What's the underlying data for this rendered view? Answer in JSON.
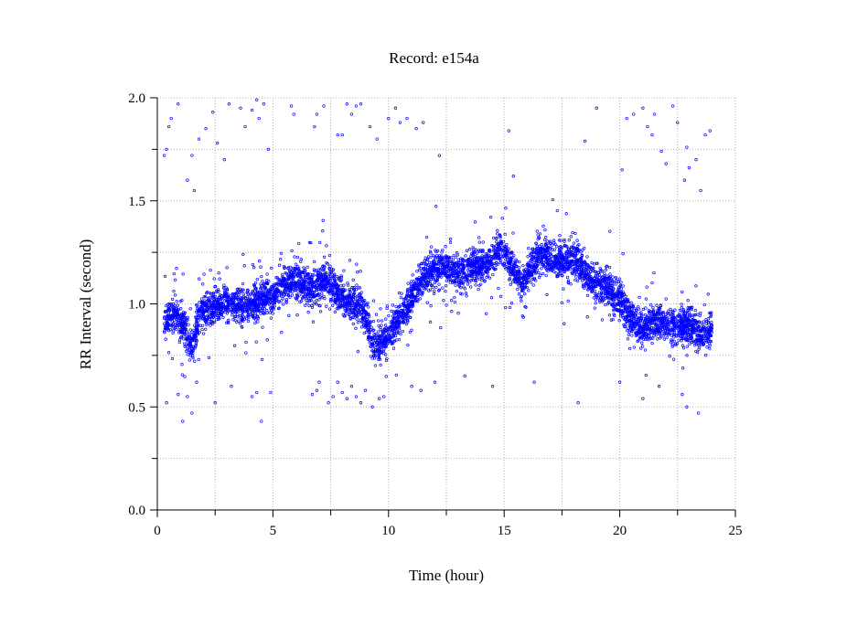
{
  "chart_data": {
    "type": "scatter",
    "title": "Record:  e154a",
    "xlabel": "Time (hour)",
    "ylabel": "RR Interval (second)",
    "xlim": [
      0,
      25
    ],
    "ylim": [
      0,
      2
    ],
    "x_ticks": [
      0,
      5,
      10,
      15,
      20,
      25
    ],
    "y_ticks": [
      0.0,
      0.5,
      1.0,
      1.5,
      2.0
    ],
    "x_tick_labels": [
      "0",
      "5",
      "10",
      "15",
      "20",
      "25"
    ],
    "y_tick_labels": [
      "0.0",
      "0.5",
      "1.0",
      "1.5",
      "2.0"
    ],
    "grid": true,
    "marker": "open-circle",
    "series_color": "#0000ff",
    "trend": [
      [
        0.3,
        0.92
      ],
      [
        0.8,
        0.95
      ],
      [
        1.2,
        0.88
      ],
      [
        1.5,
        0.78
      ],
      [
        1.8,
        0.95
      ],
      [
        2.3,
        0.98
      ],
      [
        3.0,
        1.0
      ],
      [
        3.8,
        0.98
      ],
      [
        4.5,
        1.02
      ],
      [
        5.2,
        1.05
      ],
      [
        5.8,
        1.12
      ],
      [
        6.3,
        1.1
      ],
      [
        6.8,
        1.08
      ],
      [
        7.3,
        1.12
      ],
      [
        7.8,
        1.05
      ],
      [
        8.3,
        1.0
      ],
      [
        8.8,
        1.0
      ],
      [
        9.1,
        0.9
      ],
      [
        9.4,
        0.78
      ],
      [
        9.8,
        0.82
      ],
      [
        10.3,
        0.9
      ],
      [
        10.8,
        0.98
      ],
      [
        11.3,
        1.1
      ],
      [
        11.8,
        1.15
      ],
      [
        12.2,
        1.18
      ],
      [
        12.6,
        1.18
      ],
      [
        13.2,
        1.15
      ],
      [
        13.8,
        1.18
      ],
      [
        14.4,
        1.2
      ],
      [
        14.8,
        1.28
      ],
      [
        15.3,
        1.18
      ],
      [
        15.8,
        1.1
      ],
      [
        16.2,
        1.18
      ],
      [
        16.6,
        1.25
      ],
      [
        17.0,
        1.22
      ],
      [
        17.5,
        1.2
      ],
      [
        18.0,
        1.22
      ],
      [
        18.5,
        1.15
      ],
      [
        19.0,
        1.1
      ],
      [
        19.5,
        1.08
      ],
      [
        20.0,
        1.02
      ],
      [
        20.5,
        0.92
      ],
      [
        21.0,
        0.88
      ],
      [
        21.5,
        0.92
      ],
      [
        22.0,
        0.9
      ],
      [
        22.5,
        0.88
      ],
      [
        23.0,
        0.9
      ],
      [
        23.5,
        0.85
      ],
      [
        24.0,
        0.88
      ]
    ],
    "n_points": 5500,
    "spread": 0.07,
    "outlier_points": [
      [
        0.3,
        1.72
      ],
      [
        0.4,
        1.75
      ],
      [
        0.5,
        1.86
      ],
      [
        0.6,
        1.9
      ],
      [
        0.9,
        1.97
      ],
      [
        1.3,
        1.6
      ],
      [
        1.5,
        1.72
      ],
      [
        1.6,
        1.55
      ],
      [
        1.8,
        1.8
      ],
      [
        2.1,
        1.85
      ],
      [
        2.4,
        1.93
      ],
      [
        2.6,
        1.78
      ],
      [
        2.9,
        1.7
      ],
      [
        3.1,
        1.97
      ],
      [
        3.6,
        1.95
      ],
      [
        3.8,
        1.86
      ],
      [
        4.1,
        1.94
      ],
      [
        4.3,
        1.99
      ],
      [
        4.4,
        1.9
      ],
      [
        4.6,
        1.97
      ],
      [
        4.8,
        1.75
      ],
      [
        5.8,
        1.96
      ],
      [
        5.9,
        1.92
      ],
      [
        6.8,
        1.86
      ],
      [
        6.9,
        1.92
      ],
      [
        7.2,
        1.96
      ],
      [
        7.8,
        1.82
      ],
      [
        8.0,
        1.82
      ],
      [
        8.2,
        1.97
      ],
      [
        8.4,
        1.92
      ],
      [
        8.6,
        1.96
      ],
      [
        8.8,
        1.97
      ],
      [
        9.2,
        1.86
      ],
      [
        9.5,
        1.8
      ],
      [
        10.0,
        1.9
      ],
      [
        10.3,
        1.95
      ],
      [
        10.5,
        1.88
      ],
      [
        10.8,
        1.9
      ],
      [
        11.2,
        1.85
      ],
      [
        11.5,
        1.88
      ],
      [
        12.2,
        1.72
      ],
      [
        15.2,
        1.84
      ],
      [
        15.4,
        1.62
      ],
      [
        18.5,
        1.79
      ],
      [
        19.0,
        1.95
      ],
      [
        20.1,
        1.65
      ],
      [
        20.3,
        1.9
      ],
      [
        20.6,
        1.92
      ],
      [
        21.0,
        1.95
      ],
      [
        21.2,
        1.86
      ],
      [
        21.5,
        1.92
      ],
      [
        21.8,
        1.74
      ],
      [
        22.0,
        1.68
      ],
      [
        22.3,
        1.96
      ],
      [
        22.5,
        1.88
      ],
      [
        22.8,
        1.6
      ],
      [
        23.0,
        1.66
      ],
      [
        23.3,
        1.7
      ],
      [
        23.5,
        1.55
      ],
      [
        23.7,
        1.82
      ],
      [
        23.9,
        1.84
      ],
      [
        21.4,
        1.82
      ],
      [
        22.9,
        1.76
      ],
      [
        0.4,
        0.52
      ],
      [
        0.9,
        0.56
      ],
      [
        1.1,
        0.43
      ],
      [
        1.3,
        0.55
      ],
      [
        1.5,
        0.47
      ],
      [
        1.7,
        0.62
      ],
      [
        2.5,
        0.52
      ],
      [
        3.2,
        0.6
      ],
      [
        4.1,
        0.55
      ],
      [
        4.3,
        0.57
      ],
      [
        4.5,
        0.43
      ],
      [
        4.9,
        0.57
      ],
      [
        6.7,
        0.56
      ],
      [
        6.9,
        0.58
      ],
      [
        7.0,
        0.62
      ],
      [
        7.4,
        0.52
      ],
      [
        7.6,
        0.55
      ],
      [
        7.8,
        0.62
      ],
      [
        8.0,
        0.57
      ],
      [
        8.2,
        0.54
      ],
      [
        8.4,
        0.6
      ],
      [
        8.6,
        0.55
      ],
      [
        8.8,
        0.52
      ],
      [
        9.0,
        0.58
      ],
      [
        9.3,
        0.5
      ],
      [
        9.6,
        0.54
      ],
      [
        9.8,
        0.55
      ],
      [
        11.0,
        0.6
      ],
      [
        11.4,
        0.58
      ],
      [
        12.0,
        0.62
      ],
      [
        13.3,
        0.65
      ],
      [
        14.5,
        0.6
      ],
      [
        16.3,
        0.62
      ],
      [
        18.2,
        0.52
      ],
      [
        20.0,
        0.62
      ],
      [
        21.0,
        0.54
      ],
      [
        21.7,
        0.6
      ],
      [
        22.7,
        0.56
      ],
      [
        22.9,
        0.5
      ],
      [
        23.4,
        0.47
      ]
    ]
  }
}
